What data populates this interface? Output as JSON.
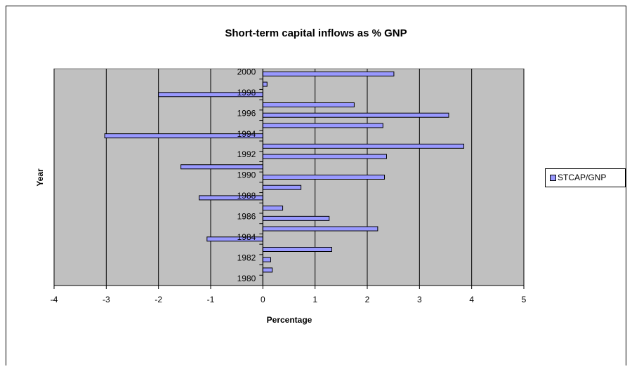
{
  "chart_data": {
    "type": "hbar",
    "title": "Short-term capital inflows as % GNP",
    "x_label": "Percentage",
    "y_label": "Year",
    "categories": [
      "1980",
      null,
      "1982",
      null,
      "1984",
      null,
      "1986",
      null,
      "1988",
      null,
      "1990",
      null,
      "1992",
      null,
      "1994",
      null,
      "1996",
      null,
      "1998",
      null,
      "2000"
    ],
    "series": [
      {
        "name": "STCAP/GNP",
        "color": "#9999ff",
        "values": [
          null,
          0.18,
          0.15,
          1.32,
          -1.07,
          2.2,
          1.27,
          0.38,
          -1.22,
          0.73,
          2.33,
          -1.57,
          2.37,
          3.85,
          -3.03,
          2.3,
          3.56,
          1.75,
          -2.0,
          0.08,
          2.51
        ]
      }
    ],
    "xlim": [
      -4,
      5
    ],
    "xticks": [
      -4,
      -3,
      -2,
      -1,
      0,
      1,
      2,
      3,
      4,
      5
    ],
    "grid": true,
    "legend": "right"
  }
}
